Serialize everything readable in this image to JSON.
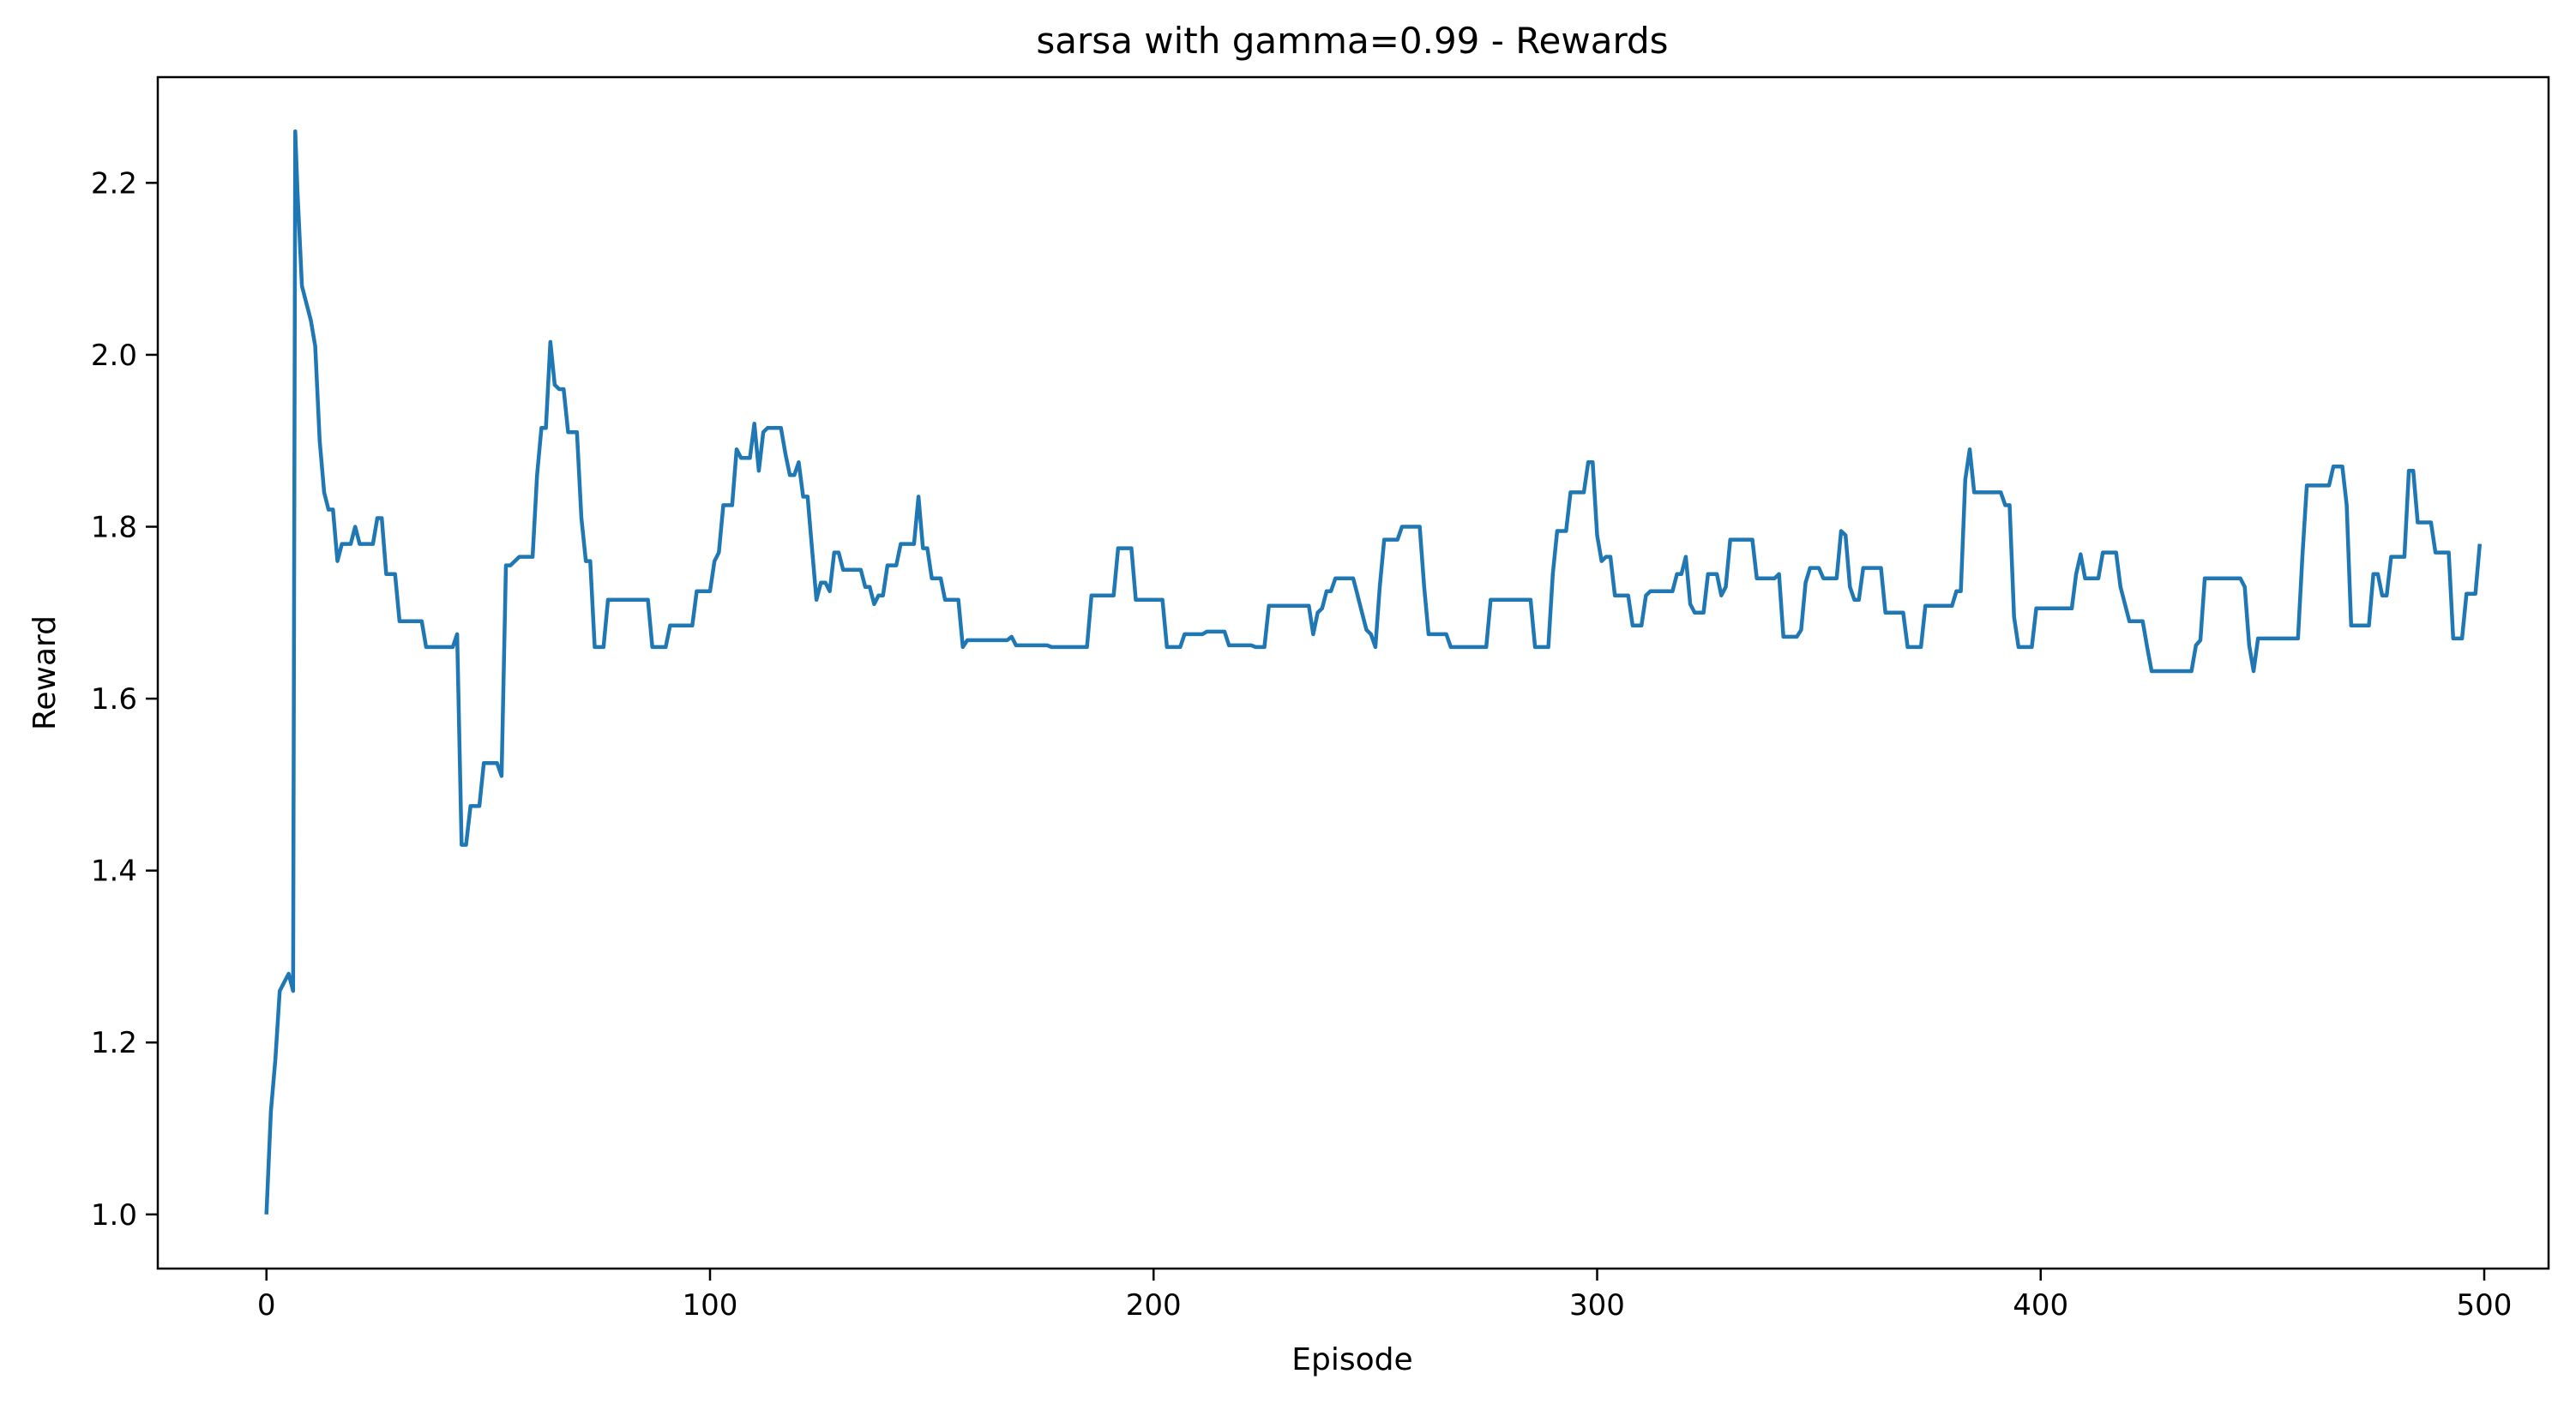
{
  "chart_data": {
    "type": "line",
    "title": "sarsa with gamma=0.99 - Rewards",
    "xlabel": "Episode",
    "ylabel": "Reward",
    "xlim": [
      -24.5,
      514.5
    ],
    "ylim": [
      0.937,
      2.323
    ],
    "grid": false,
    "xticks": [
      0,
      100,
      200,
      300,
      400,
      500
    ],
    "xtick_labels": [
      "0",
      "100",
      "200",
      "300",
      "400",
      "500"
    ],
    "yticks": [
      1.0,
      1.2,
      1.4,
      1.6,
      1.8,
      2.0,
      2.2
    ],
    "ytick_labels": [
      "1.0",
      "1.2",
      "1.4",
      "1.6",
      "1.8",
      "2.0",
      "2.2"
    ],
    "series": [
      {
        "color": "#1f77b4",
        "points": [
          [
            0,
            1.0
          ],
          [
            1,
            1.12
          ],
          [
            2,
            1.18
          ],
          [
            3,
            1.26
          ],
          [
            4,
            1.27
          ],
          [
            5,
            1.28
          ],
          [
            6,
            1.26
          ],
          [
            6.5,
            2.26
          ],
          [
            7,
            2.19
          ],
          [
            8,
            2.08
          ],
          [
            9,
            2.06
          ],
          [
            10,
            2.04
          ],
          [
            11,
            2.01
          ],
          [
            12,
            1.9
          ],
          [
            13,
            1.84
          ],
          [
            14,
            1.82
          ],
          [
            15,
            1.82
          ],
          [
            16,
            1.76
          ],
          [
            17,
            1.78
          ],
          [
            19,
            1.78
          ],
          [
            20,
            1.8
          ],
          [
            21,
            1.78
          ],
          [
            24,
            1.78
          ],
          [
            25,
            1.81
          ],
          [
            26,
            1.81
          ],
          [
            27,
            1.745
          ],
          [
            29,
            1.745
          ],
          [
            30,
            1.69
          ],
          [
            35,
            1.69
          ],
          [
            36,
            1.66
          ],
          [
            42,
            1.66
          ],
          [
            43,
            1.675
          ],
          [
            44,
            1.43
          ],
          [
            45,
            1.43
          ],
          [
            46,
            1.475
          ],
          [
            48,
            1.475
          ],
          [
            49,
            1.525
          ],
          [
            52,
            1.525
          ],
          [
            53,
            1.51
          ],
          [
            54,
            1.755
          ],
          [
            55,
            1.755
          ],
          [
            56,
            1.76
          ],
          [
            57,
            1.765
          ],
          [
            60,
            1.765
          ],
          [
            61,
            1.86
          ],
          [
            62,
            1.915
          ],
          [
            63,
            1.915
          ],
          [
            64,
            2.015
          ],
          [
            65,
            1.965
          ],
          [
            66,
            1.96
          ],
          [
            67,
            1.96
          ],
          [
            68,
            1.91
          ],
          [
            70,
            1.91
          ],
          [
            71,
            1.81
          ],
          [
            72,
            1.76
          ],
          [
            73,
            1.76
          ],
          [
            74,
            1.66
          ],
          [
            76,
            1.66
          ],
          [
            77,
            1.715
          ],
          [
            86,
            1.715
          ],
          [
            87,
            1.66
          ],
          [
            90,
            1.66
          ],
          [
            91,
            1.685
          ],
          [
            96,
            1.685
          ],
          [
            97,
            1.725
          ],
          [
            100,
            1.725
          ],
          [
            101,
            1.76
          ],
          [
            102,
            1.77
          ],
          [
            103,
            1.825
          ],
          [
            105,
            1.825
          ],
          [
            106,
            1.89
          ],
          [
            107,
            1.88
          ],
          [
            109,
            1.88
          ],
          [
            110,
            1.92
          ],
          [
            111,
            1.865
          ],
          [
            112,
            1.91
          ],
          [
            113,
            1.915
          ],
          [
            116,
            1.915
          ],
          [
            117,
            1.885
          ],
          [
            118,
            1.86
          ],
          [
            119,
            1.86
          ],
          [
            120,
            1.875
          ],
          [
            121,
            1.835
          ],
          [
            122,
            1.835
          ],
          [
            123,
            1.775
          ],
          [
            124,
            1.715
          ],
          [
            125,
            1.735
          ],
          [
            126,
            1.735
          ],
          [
            127,
            1.725
          ],
          [
            128,
            1.77
          ],
          [
            129,
            1.77
          ],
          [
            130,
            1.75
          ],
          [
            134,
            1.75
          ],
          [
            135,
            1.73
          ],
          [
            136,
            1.73
          ],
          [
            137,
            1.71
          ],
          [
            138,
            1.72
          ],
          [
            139,
            1.72
          ],
          [
            140,
            1.755
          ],
          [
            142,
            1.755
          ],
          [
            143,
            1.78
          ],
          [
            146,
            1.78
          ],
          [
            147,
            1.835
          ],
          [
            148,
            1.775
          ],
          [
            149,
            1.775
          ],
          [
            150,
            1.74
          ],
          [
            152,
            1.74
          ],
          [
            153,
            1.715
          ],
          [
            156,
            1.715
          ],
          [
            157,
            1.66
          ],
          [
            158,
            1.668
          ],
          [
            167,
            1.668
          ],
          [
            168,
            1.672
          ],
          [
            169,
            1.662
          ],
          [
            176,
            1.662
          ],
          [
            177,
            1.66
          ],
          [
            185,
            1.66
          ],
          [
            186,
            1.72
          ],
          [
            191,
            1.72
          ],
          [
            192,
            1.775
          ],
          [
            195,
            1.775
          ],
          [
            196,
            1.715
          ],
          [
            202,
            1.715
          ],
          [
            203,
            1.66
          ],
          [
            206,
            1.66
          ],
          [
            207,
            1.675
          ],
          [
            211,
            1.675
          ],
          [
            212,
            1.678
          ],
          [
            216,
            1.678
          ],
          [
            217,
            1.662
          ],
          [
            222,
            1.662
          ],
          [
            223,
            1.66
          ],
          [
            225,
            1.66
          ],
          [
            226,
            1.708
          ],
          [
            235,
            1.708
          ],
          [
            236,
            1.675
          ],
          [
            237,
            1.7
          ],
          [
            238,
            1.705
          ],
          [
            239,
            1.725
          ],
          [
            240,
            1.725
          ],
          [
            241,
            1.74
          ],
          [
            245,
            1.74
          ],
          [
            246,
            1.72
          ],
          [
            247,
            1.7
          ],
          [
            248,
            1.68
          ],
          [
            249,
            1.675
          ],
          [
            250,
            1.66
          ],
          [
            251,
            1.73
          ],
          [
            252,
            1.785
          ],
          [
            255,
            1.785
          ],
          [
            256,
            1.8
          ],
          [
            260,
            1.8
          ],
          [
            261,
            1.73
          ],
          [
            262,
            1.675
          ],
          [
            266,
            1.675
          ],
          [
            267,
            1.66
          ],
          [
            275,
            1.66
          ],
          [
            276,
            1.715
          ],
          [
            285,
            1.715
          ],
          [
            286,
            1.66
          ],
          [
            289,
            1.66
          ],
          [
            290,
            1.745
          ],
          [
            291,
            1.795
          ],
          [
            293,
            1.795
          ],
          [
            294,
            1.84
          ],
          [
            297,
            1.84
          ],
          [
            298,
            1.875
          ],
          [
            299,
            1.875
          ],
          [
            300,
            1.79
          ],
          [
            301,
            1.76
          ],
          [
            302,
            1.765
          ],
          [
            303,
            1.765
          ],
          [
            304,
            1.72
          ],
          [
            307,
            1.72
          ],
          [
            308,
            1.685
          ],
          [
            310,
            1.685
          ],
          [
            311,
            1.72
          ],
          [
            312,
            1.725
          ],
          [
            317,
            1.725
          ],
          [
            318,
            1.745
          ],
          [
            319,
            1.745
          ],
          [
            320,
            1.765
          ],
          [
            321,
            1.71
          ],
          [
            322,
            1.7
          ],
          [
            324,
            1.7
          ],
          [
            325,
            1.745
          ],
          [
            327,
            1.745
          ],
          [
            328,
            1.72
          ],
          [
            329,
            1.73
          ],
          [
            330,
            1.785
          ],
          [
            335,
            1.785
          ],
          [
            336,
            1.74
          ],
          [
            340,
            1.74
          ],
          [
            341,
            1.745
          ],
          [
            342,
            1.672
          ],
          [
            345,
            1.672
          ],
          [
            346,
            1.68
          ],
          [
            347,
            1.735
          ],
          [
            348,
            1.752
          ],
          [
            350,
            1.752
          ],
          [
            351,
            1.74
          ],
          [
            354,
            1.74
          ],
          [
            355,
            1.795
          ],
          [
            356,
            1.79
          ],
          [
            357,
            1.73
          ],
          [
            358,
            1.715
          ],
          [
            359,
            1.715
          ],
          [
            360,
            1.752
          ],
          [
            364,
            1.752
          ],
          [
            365,
            1.7
          ],
          [
            369,
            1.7
          ],
          [
            370,
            1.66
          ],
          [
            373,
            1.66
          ],
          [
            374,
            1.708
          ],
          [
            380,
            1.708
          ],
          [
            381,
            1.725
          ],
          [
            382,
            1.725
          ],
          [
            383,
            1.855
          ],
          [
            384,
            1.89
          ],
          [
            385,
            1.84
          ],
          [
            391,
            1.84
          ],
          [
            392,
            1.825
          ],
          [
            393,
            1.825
          ],
          [
            394,
            1.695
          ],
          [
            395,
            1.66
          ],
          [
            398,
            1.66
          ],
          [
            399,
            1.705
          ],
          [
            407,
            1.705
          ],
          [
            408,
            1.745
          ],
          [
            409,
            1.768
          ],
          [
            410,
            1.74
          ],
          [
            413,
            1.74
          ],
          [
            414,
            1.77
          ],
          [
            417,
            1.77
          ],
          [
            418,
            1.73
          ],
          [
            419,
            1.71
          ],
          [
            420,
            1.69
          ],
          [
            423,
            1.69
          ],
          [
            424,
            1.66
          ],
          [
            425,
            1.632
          ],
          [
            434,
            1.632
          ],
          [
            435,
            1.662
          ],
          [
            436,
            1.668
          ],
          [
            437,
            1.74
          ],
          [
            445,
            1.74
          ],
          [
            446,
            1.73
          ],
          [
            447,
            1.662
          ],
          [
            448,
            1.632
          ],
          [
            449,
            1.67
          ],
          [
            451,
            1.67
          ],
          [
            452,
            1.67
          ],
          [
            458,
            1.67
          ],
          [
            459,
            1.765
          ],
          [
            460,
            1.848
          ],
          [
            465,
            1.848
          ],
          [
            466,
            1.87
          ],
          [
            468,
            1.87
          ],
          [
            469,
            1.825
          ],
          [
            470,
            1.685
          ],
          [
            474,
            1.685
          ],
          [
            475,
            1.745
          ],
          [
            476,
            1.745
          ],
          [
            477,
            1.72
          ],
          [
            478,
            1.72
          ],
          [
            479,
            1.765
          ],
          [
            482,
            1.765
          ],
          [
            483,
            1.865
          ],
          [
            484,
            1.865
          ],
          [
            485,
            1.805
          ],
          [
            488,
            1.805
          ],
          [
            489,
            1.77
          ],
          [
            492,
            1.77
          ],
          [
            493,
            1.67
          ],
          [
            495,
            1.67
          ],
          [
            496,
            1.722
          ],
          [
            498,
            1.722
          ],
          [
            499,
            1.78
          ]
        ]
      }
    ]
  }
}
